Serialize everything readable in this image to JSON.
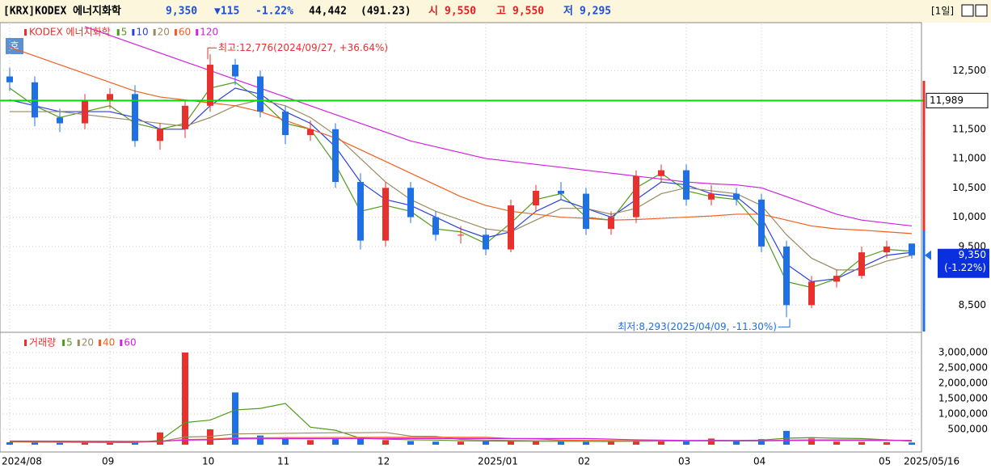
{
  "header": {
    "name": "[KRX]KODEX 에너지화학",
    "price": "9,350",
    "change": "▼115",
    "change_pct": "-1.22%",
    "volume": "44,442",
    "amount": "(491.23)",
    "open_label": "시",
    "open": "9,550",
    "high_label": "고",
    "high": "9,550",
    "low_label": "저",
    "low": "9,295",
    "period": "[1일]",
    "quote_button": "호"
  },
  "chart_data": [
    {
      "type": "candlestick",
      "title": "KODEX 에너지화학",
      "up_color": "#e8302c",
      "down_color": "#1f6fe5",
      "categories": [
        "2024/08",
        null,
        null,
        null,
        "09",
        null,
        null,
        null,
        "10",
        null,
        null,
        "11",
        null,
        null,
        null,
        "12",
        null,
        null,
        null,
        "2025/01",
        null,
        null,
        null,
        "02",
        null,
        null,
        null,
        "03",
        null,
        null,
        "04",
        null,
        null,
        null,
        null,
        "05",
        "2025/05/16"
      ],
      "open": [
        12400,
        12300,
        11700,
        11600,
        12000,
        12100,
        11300,
        11500,
        11900,
        12600,
        12400,
        11800,
        11400,
        11500,
        10600,
        9600,
        10500,
        10000,
        9700,
        9700,
        9450,
        10200,
        10450,
        10400,
        9800,
        10000,
        10700,
        10800,
        10300,
        10400,
        10300,
        9500,
        8500,
        8900,
        9000,
        9400,
        9550
      ],
      "high": [
        12550,
        12400,
        11850,
        12100,
        12200,
        12250,
        11600,
        12000,
        12776,
        12700,
        12500,
        11900,
        11650,
        11600,
        10750,
        10600,
        10600,
        10100,
        9850,
        9800,
        10300,
        10550,
        10600,
        10500,
        10100,
        10800,
        10900,
        10900,
        10550,
        10500,
        10400,
        9600,
        9000,
        9100,
        9500,
        9600,
        9550
      ],
      "low": [
        12150,
        11550,
        11450,
        11500,
        11850,
        11200,
        11150,
        11350,
        11800,
        12250,
        11700,
        11250,
        11300,
        10500,
        9450,
        9500,
        9900,
        9600,
        9550,
        9350,
        9400,
        10100,
        10300,
        9700,
        9700,
        9900,
        10600,
        10200,
        10200,
        10200,
        9400,
        8293,
        8450,
        8800,
        8950,
        9300,
        9295
      ],
      "close": [
        12300,
        11700,
        11600,
        12000,
        12100,
        11300,
        11500,
        11900,
        12600,
        12400,
        11800,
        11400,
        11500,
        10600,
        9600,
        10500,
        10000,
        9700,
        9700,
        9450,
        10200,
        10450,
        10400,
        9800,
        10000,
        10700,
        10800,
        10300,
        10400,
        10300,
        9500,
        8500,
        8900,
        9000,
        9400,
        9500,
        9350
      ],
      "series": [
        {
          "name": "5",
          "color": "#4f9a1a",
          "values": [
            12200,
            11900,
            11700,
            11800,
            11900,
            11600,
            11500,
            11600,
            12200,
            12300,
            12000,
            11600,
            11500,
            10900,
            10100,
            10200,
            10100,
            9800,
            9750,
            9550,
            9900,
            10300,
            10400,
            10000,
            9950,
            10500,
            10750,
            10450,
            10350,
            10300,
            9800,
            8900,
            8800,
            8950,
            9300,
            9450,
            9420
          ]
        },
        {
          "name": "10",
          "color": "#2a3fe0",
          "values": [
            12000,
            11900,
            11800,
            11800,
            11800,
            11700,
            11500,
            11500,
            11900,
            12200,
            12100,
            11800,
            11600,
            11200,
            10600,
            10300,
            10200,
            10000,
            9800,
            9650,
            9750,
            10100,
            10300,
            10150,
            10000,
            10300,
            10600,
            10550,
            10400,
            10350,
            10000,
            9200,
            8900,
            8950,
            9150,
            9350,
            9400
          ]
        },
        {
          "name": "20",
          "color": "#9a8a60",
          "values": [
            11800,
            11800,
            11800,
            11750,
            11700,
            11650,
            11600,
            11550,
            11700,
            11900,
            12000,
            11900,
            11700,
            11400,
            11000,
            10600,
            10300,
            10100,
            9950,
            9800,
            9750,
            9950,
            10150,
            10150,
            10050,
            10150,
            10400,
            10500,
            10450,
            10400,
            10200,
            9700,
            9300,
            9100,
            9100,
            9250,
            9350
          ]
        },
        {
          "name": "60",
          "color": "#f06020",
          "values": [
            12900,
            12750,
            12600,
            12450,
            12300,
            12150,
            12050,
            12000,
            11950,
            11900,
            11800,
            11650,
            11500,
            11350,
            11150,
            10950,
            10750,
            10550,
            10350,
            10200,
            10100,
            10050,
            10000,
            9980,
            9950,
            9960,
            9980,
            10000,
            10020,
            10050,
            10050,
            9950,
            9850,
            9800,
            9780,
            9750,
            9720
          ]
        },
        {
          "name": "120",
          "color": "#d020e0",
          "values": [
            null,
            null,
            null,
            13250,
            13100,
            12950,
            12800,
            12650,
            12500,
            12350,
            12200,
            12050,
            11900,
            11750,
            11600,
            11450,
            11300,
            11200,
            11100,
            11000,
            10950,
            10900,
            10850,
            10800,
            10750,
            10700,
            10650,
            10600,
            10570,
            10550,
            10500,
            10350,
            10200,
            10050,
            9950,
            9900,
            9850
          ]
        }
      ],
      "ylim": [
        8050,
        13290
      ],
      "yticks": [
        {
          "value": 8500,
          "label": "8,500"
        },
        {
          "value": 9500,
          "label": "9,500"
        },
        {
          "value": 10000,
          "label": "10,000"
        },
        {
          "value": 10500,
          "label": "10,500"
        },
        {
          "value": 11000,
          "label": "11,000"
        },
        {
          "value": 11500,
          "label": "11,500"
        },
        {
          "value": 12500,
          "label": "12,500"
        }
      ],
      "reference_line": {
        "value": 11989,
        "label": "11,989",
        "color": "#00dd00"
      },
      "last_price": {
        "value": 9350,
        "label": "9,350",
        "change": "(-1.22%)"
      },
      "annotations": [
        "최고:12,776(2024/09/27, +36.64%)",
        "최저:8,293(2025/04/09, -11.30%)"
      ]
    },
    {
      "type": "bar",
      "title": "거래량",
      "values": [
        80000,
        70000,
        60000,
        90000,
        60000,
        70000,
        400000,
        3000000,
        500000,
        1700000,
        300000,
        200000,
        150000,
        180000,
        200000,
        150000,
        120000,
        100000,
        100000,
        120000,
        130000,
        110000,
        100000,
        90000,
        100000,
        150000,
        140000,
        120000,
        200000,
        110000,
        180000,
        450000,
        200000,
        100000,
        90000,
        80000,
        70000
      ],
      "series": [
        {
          "name": "5",
          "color": "#4f9a1a",
          "values": [
            90000,
            85000,
            80000,
            75000,
            72000,
            70000,
            140000,
            720000,
            800000,
            1130000,
            1180000,
            1340000,
            570000,
            470000,
            210000,
            180000,
            160000,
            150000,
            130000,
            120000,
            115000,
            115000,
            110000,
            110000,
            105000,
            115000,
            120000,
            125000,
            140000,
            140000,
            150000,
            210000,
            230000,
            210000,
            200000,
            160000,
            110000
          ]
        },
        {
          "name": "20",
          "color": "#9a8a60",
          "values": [
            100000,
            95000,
            90000,
            88000,
            85000,
            82000,
            100000,
            250000,
            270000,
            350000,
            360000,
            370000,
            380000,
            390000,
            390000,
            400000,
            280000,
            270000,
            170000,
            150000,
            140000,
            130000,
            125000,
            120000,
            115000,
            115000,
            118000,
            120000,
            125000,
            125000,
            130000,
            150000,
            160000,
            160000,
            160000,
            150000,
            140000
          ]
        },
        {
          "name": "40",
          "color": "#f06020",
          "values": [
            110000,
            108000,
            105000,
            102000,
            100000,
            98000,
            100000,
            170000,
            180000,
            220000,
            225000,
            230000,
            232000,
            235000,
            238000,
            240000,
            240000,
            240000,
            240000,
            240000,
            200000,
            190000,
            150000,
            140000,
            135000,
            130000,
            128000,
            125000,
            125000,
            123000,
            125000,
            135000,
            140000,
            140000,
            140000,
            138000,
            135000
          ]
        },
        {
          "name": "60",
          "color": "#d020e0",
          "values": [
            120000,
            118000,
            116000,
            114000,
            112000,
            110000,
            112000,
            150000,
            160000,
            190000,
            192000,
            195000,
            197000,
            199000,
            200000,
            200000,
            200000,
            200000,
            200000,
            200000,
            200000,
            200000,
            200000,
            200000,
            180000,
            160000,
            150000,
            140000,
            135000,
            132000,
            132000,
            138000,
            140000,
            140000,
            140000,
            138000,
            136000
          ]
        }
      ],
      "ylim": [
        0,
        3630000
      ],
      "yticks": [
        {
          "value": 500000,
          "label": "500,000"
        },
        {
          "value": 1000000,
          "label": "1,000,000"
        },
        {
          "value": 1500000,
          "label": "1,500,000"
        },
        {
          "value": 2000000,
          "label": "2,000,000"
        },
        {
          "value": 2500000,
          "label": "2,500,000"
        },
        {
          "value": 3000000,
          "label": "3,000,000"
        }
      ]
    }
  ]
}
